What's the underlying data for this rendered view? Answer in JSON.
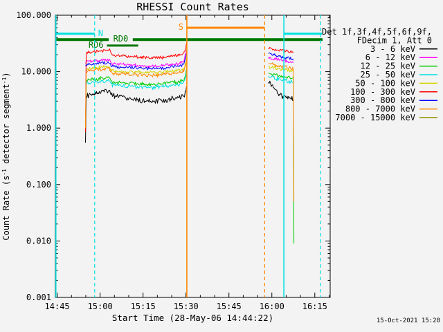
{
  "meta": {
    "plot_timestamp": "15-Oct-2021 15:28"
  },
  "chart_data": {
    "type": "line",
    "title": "RHESSI Count Rates",
    "xlabel": "Start Time (28-May-06 14:44:22)",
    "ylabel_plain": "Count Rate (s^-1 detector segment^-1)",
    "ylabel_parts": [
      {
        "text": "Count Rate (s"
      },
      {
        "sup": "-1"
      },
      {
        "text": " detector segment"
      },
      {
        "sup": "-1"
      },
      {
        "text": ")"
      }
    ],
    "x_axis": {
      "start_min": 44.37,
      "end_min": 140.37,
      "minor_step_min": 5,
      "major_ticks": [
        {
          "min": 45,
          "label": "14:45"
        },
        {
          "min": 60,
          "label": "15:00"
        },
        {
          "min": 75,
          "label": "15:15"
        },
        {
          "min": 90,
          "label": "15:30"
        },
        {
          "min": 105,
          "label": "15:45"
        },
        {
          "min": 120,
          "label": "16:00"
        },
        {
          "min": 135,
          "label": "16:15"
        }
      ]
    },
    "y_axis": {
      "top": 100,
      "bottom": 0.001,
      "ticks": [
        {
          "v": 100,
          "label": "100.000"
        },
        {
          "v": 10,
          "label": "10.000"
        },
        {
          "v": 1,
          "label": "1.000"
        },
        {
          "v": 0.1,
          "label": "0.100"
        },
        {
          "v": 0.01,
          "label": "0.010"
        },
        {
          "v": 0.001,
          "label": "0.001"
        }
      ]
    },
    "legend": {
      "header": [
        "Det 1f,3f,4f,5f,6f,9f,",
        "FDecim 1, Att 0"
      ],
      "entries": [
        {
          "label": "3 - 6 keV",
          "color": "#000000"
        },
        {
          "label": "6 - 12 keV",
          "color": "#ff00ff"
        },
        {
          "label": "12 - 25 keV",
          "color": "#00cc00"
        },
        {
          "label": "25 - 50 keV",
          "color": "#00e0e0"
        },
        {
          "label": "50 - 100 keV",
          "color": "#d4d400"
        },
        {
          "label": "100 - 300 keV",
          "color": "#ff0000"
        },
        {
          "label": "300 - 800 keV",
          "color": "#0000ff"
        },
        {
          "label": "800 - 7000 keV",
          "color": "#ff8800"
        },
        {
          "label": "7000 - 15000 keV",
          "color": "#8f8f00"
        }
      ]
    },
    "flags": {
      "vlines": [
        {
          "time_min": 44.55,
          "color": "#00e0e0",
          "dashed": false
        },
        {
          "time_min": 58.1,
          "color": "#00e0e0",
          "dashed": true
        },
        {
          "time_min": 90.3,
          "color": "#ff8800",
          "dashed": false
        },
        {
          "time_min": 117.5,
          "color": "#ff8800",
          "dashed": true
        },
        {
          "time_min": 124.2,
          "color": "#00e0e0",
          "dashed": false
        },
        {
          "time_min": 137.0,
          "color": "#00e0e0",
          "dashed": true
        }
      ],
      "hbars": [
        {
          "label": "N",
          "t0": 44.37,
          "t1": 58.1,
          "value": 47,
          "color": "#00e0e0",
          "thick": 3,
          "label_pos": "after"
        },
        {
          "label": "",
          "t0": 124.2,
          "t1": 137.5,
          "value": 47,
          "color": "#00e0e0",
          "thick": 3,
          "label_pos": "none"
        },
        {
          "label": "S",
          "t0": 90.3,
          "t1": 117.5,
          "value": 60,
          "color": "#ff8800",
          "thick": 3,
          "label_pos": "before"
        },
        {
          "label": "RD0",
          "t0": 44.37,
          "t1": 137.7,
          "value": 37,
          "color": "#007700",
          "thick": 4,
          "label_pos": "gap",
          "gap": [
            63.0,
            71.4
          ]
        },
        {
          "label": "RD6",
          "t0": 62.4,
          "t1": 73.3,
          "value": 29,
          "color": "#007700",
          "thick": 3,
          "label_pos": "before"
        }
      ]
    },
    "series": [
      {
        "name": "3 - 6 keV",
        "color": "#000000",
        "sigma": 0.03,
        "seed": 11,
        "segments": [
          {
            "t": [
              54.9,
              55.1,
              56,
              58,
              60,
              62,
              63.3,
              64.1,
              66,
              69,
              72,
              75,
              78,
              81,
              84,
              86.5,
              88.5,
              89.8,
              90.3
            ],
            "v": [
              0.55,
              3.7,
              3.9,
              4.2,
              4.4,
              4.5,
              4.6,
              3.8,
              3.7,
              3.5,
              3.2,
              3.0,
              2.95,
              3.0,
              3.2,
              3.4,
              3.7,
              4.2,
              6.0
            ]
          },
          {
            "t": [
              118.8,
              119.6,
              120.6,
              121.6,
              122.6,
              123.6,
              124.6,
              125.4,
              126.2,
              127.0,
              127.7
            ],
            "v": [
              6.5,
              6.1,
              5.2,
              4.4,
              3.9,
              3.5,
              3.7,
              3.3,
              3.6,
              3.2,
              3.4
            ]
          }
        ]
      },
      {
        "name": "6 - 12 keV",
        "color": "#ff00ff",
        "sigma": 0.018,
        "seed": 22,
        "segments": [
          {
            "t": [
              54.9,
              55.1,
              56,
              60,
              63.3,
              64.1,
              68,
              72,
              76,
              80,
              84,
              87,
              89.3,
              90.3
            ],
            "v": [
              14,
              15,
              15.3,
              16,
              16.5,
              13.8,
              13.4,
              13,
              12.6,
              12.6,
              13,
              13.8,
              15,
              26
            ]
          },
          {
            "t": [
              118.8,
              120,
              122,
              124,
              126,
              127.7
            ],
            "v": [
              18,
              17.5,
              16.5,
              15.8,
              15,
              14.5
            ]
          }
        ]
      },
      {
        "name": "12 - 25 keV",
        "color": "#00cc00",
        "sigma": 0.022,
        "seed": 33,
        "segments": [
          {
            "t": [
              54.9,
              55.1,
              56,
              60,
              63.3,
              64.1,
              68,
              72,
              76,
              80,
              84,
              87,
              89.3,
              90.3
            ],
            "v": [
              0.95,
              7.0,
              7.2,
              7.6,
              7.9,
              6.5,
              6.3,
              6.1,
              6.0,
              6.0,
              6.3,
              6.7,
              7.2,
              11
            ]
          },
          {
            "t": [
              118.8,
              120,
              122,
              124,
              126,
              127.7
            ],
            "v": [
              9.5,
              9.0,
              8.6,
              8.2,
              7.9,
              7.6
            ]
          }
        ],
        "drops": [
          {
            "t": 127.7,
            "to": 0.009
          }
        ]
      },
      {
        "name": "25 - 50 keV",
        "color": "#00e0e0",
        "sigma": 0.022,
        "seed": 44,
        "segments": [
          {
            "t": [
              54.9,
              55.1,
              56,
              60,
              63.3,
              64.1,
              68,
              72,
              76,
              80,
              84,
              87,
              89.3,
              90.3
            ],
            "v": [
              6.1,
              6.2,
              6.4,
              6.7,
              7.0,
              5.8,
              5.6,
              5.4,
              5.3,
              5.3,
              5.6,
              5.9,
              6.4,
              9.5
            ]
          },
          {
            "t": [
              118.8,
              120,
              122,
              124,
              126,
              127.7
            ],
            "v": [
              8.4,
              8.0,
              7.5,
              7.1,
              6.8,
              6.5
            ]
          }
        ]
      },
      {
        "name": "50 - 100 keV",
        "color": "#d4d400",
        "sigma": 0.02,
        "seed": 55,
        "segments": [
          {
            "t": [
              54.9,
              55.1,
              56,
              60,
              63.3,
              64.1,
              68,
              72,
              76,
              80,
              84,
              87,
              89.3,
              90.3
            ],
            "v": [
              10.8,
              11,
              11.4,
              12,
              12.4,
              10.3,
              10,
              9.8,
              9.6,
              9.6,
              10,
              10.5,
              11.3,
              17
            ]
          },
          {
            "t": [
              118.8,
              120,
              122,
              124,
              126,
              127.7
            ],
            "v": [
              12.5,
              12,
              11.5,
              11,
              10.6,
              10.2
            ]
          }
        ]
      },
      {
        "name": "100 - 300 keV",
        "color": "#ff0000",
        "sigma": 0.016,
        "seed": 66,
        "segments": [
          {
            "t": [
              54.9,
              55.1,
              56,
              58,
              60,
              62,
              63.3,
              64.1,
              67,
              71,
              75,
              79,
              83,
              86,
              88.5,
              89.8,
              90.3
            ],
            "v": [
              0.85,
              21,
              22,
              22.5,
              23,
              24,
              24.5,
              19.5,
              19,
              18.5,
              18,
              17.5,
              18,
              19,
              20,
              24,
              34
            ]
          },
          {
            "t": [
              118.8,
              120,
              122,
              124,
              126,
              127.7
            ],
            "v": [
              26,
              25,
              24,
              23.5,
              22.5,
              22
            ]
          }
        ]
      },
      {
        "name": "300 - 800 keV",
        "color": "#0000ff",
        "sigma": 0.018,
        "seed": 77,
        "segments": [
          {
            "t": [
              54.9,
              55.1,
              56,
              60,
              63.3,
              64.1,
              68,
              72,
              76,
              80,
              84,
              87,
              89.3,
              90.3
            ],
            "v": [
              12.5,
              13.2,
              13.5,
              14,
              14.5,
              12.3,
              12,
              11.8,
              11.5,
              11.5,
              11.9,
              12.4,
              13.5,
              22
            ]
          },
          {
            "t": [
              118.8,
              120,
              122,
              124,
              126,
              127.7
            ],
            "v": [
              21,
              20,
              19,
              18,
              17.2,
              16.5
            ]
          }
        ]
      },
      {
        "name": "800 - 7000 keV",
        "color": "#ff8800",
        "sigma": 0.02,
        "seed": 88,
        "segments": [
          {
            "t": [
              54.9,
              55.1,
              56,
              60,
              63.3,
              64.1,
              68,
              72,
              76,
              80,
              84,
              87,
              89.3,
              90.3
            ],
            "v": [
              1.0,
              10,
              10.4,
              11,
              11.4,
              9.4,
              9.1,
              8.9,
              8.7,
              8.7,
              9.1,
              9.6,
              10.4,
              16
            ]
          },
          {
            "t": [
              118.8,
              120,
              122,
              124,
              126,
              127.7
            ],
            "v": [
              14,
              13.5,
              12.8,
              12.2,
              11.6,
              11
            ]
          }
        ],
        "drops": [
          {
            "t": 127.7,
            "to": 0.05
          }
        ]
      },
      {
        "name": "7000 - 15000 keV",
        "color": "#8f8f00",
        "sigma": 0,
        "seed": 99,
        "segments": []
      }
    ]
  }
}
